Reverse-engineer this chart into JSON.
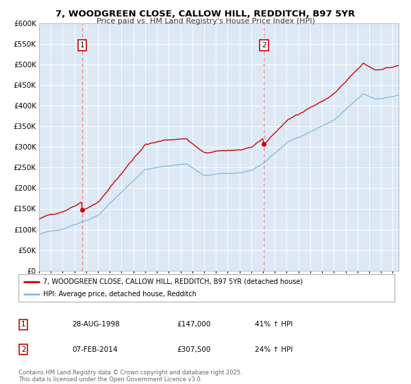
{
  "title": "7, WOODGREEN CLOSE, CALLOW HILL, REDDITCH, B97 5YR",
  "subtitle": "Price paid vs. HM Land Registry's House Price Index (HPI)",
  "bg_color": "#dce9f5",
  "line1_color": "#cc0000",
  "line2_color": "#8bbbd9",
  "vline_color": "#f08080",
  "ylim": [
    0,
    600000
  ],
  "yticks": [
    0,
    50000,
    100000,
    150000,
    200000,
    250000,
    300000,
    350000,
    400000,
    450000,
    500000,
    550000,
    600000
  ],
  "xmin": 1995,
  "xmax": 2025.5,
  "sale1_year": 1998.667,
  "sale1_price": 147000,
  "sale2_year": 2014.083,
  "sale2_price": 307500,
  "legend_line1": "7, WOODGREEN CLOSE, CALLOW HILL, REDDITCH, B97 5YR (detached house)",
  "legend_line2": "HPI: Average price, detached house, Redditch",
  "table_row1_num": "1",
  "table_row1_date": "28-AUG-1998",
  "table_row1_price": "£147,000",
  "table_row1_hpi": "41% ↑ HPI",
  "table_row2_num": "2",
  "table_row2_date": "07-FEB-2014",
  "table_row2_price": "£307,500",
  "table_row2_hpi": "24% ↑ HPI",
  "footer": "Contains HM Land Registry data © Crown copyright and database right 2025.\nThis data is licensed under the Open Government Licence v3.0."
}
